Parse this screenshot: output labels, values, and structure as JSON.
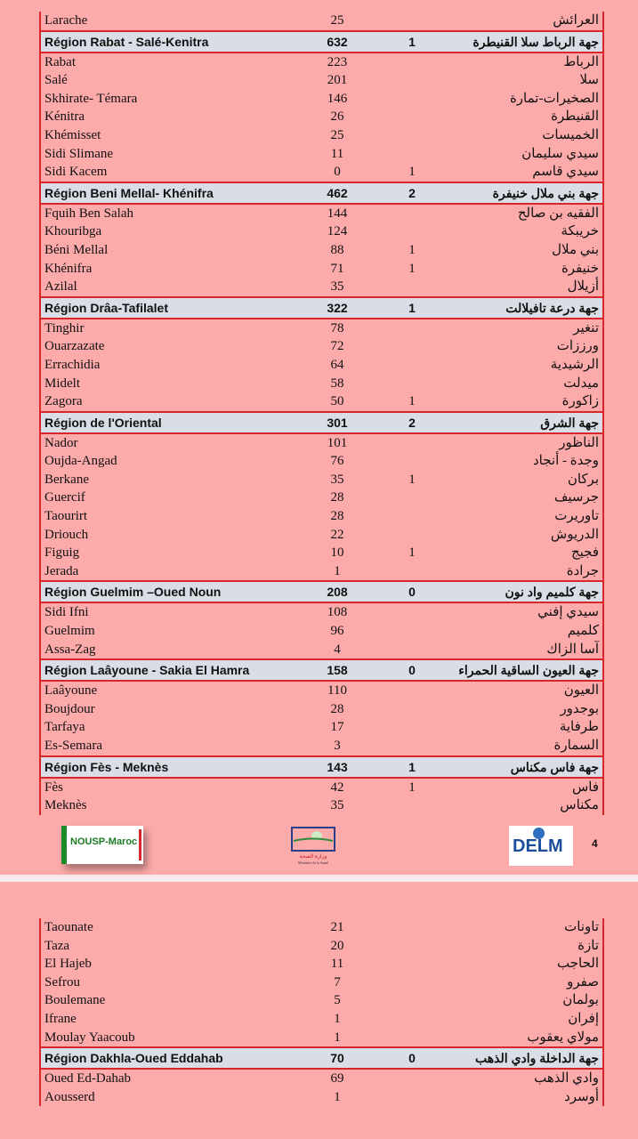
{
  "page1_rows": [
    {
      "fr": "Larache",
      "n": "25",
      "d": "",
      "ar": "العرائش"
    },
    {
      "fr": "Région Rabat - Salé-Kenitra",
      "n": "632",
      "d": "1",
      "ar": "جهة الرباط سلا القنيطرة",
      "region": true
    },
    {
      "fr": "Rabat",
      "n": "223",
      "d": "",
      "ar": "الرباط"
    },
    {
      "fr": "Salé",
      "n": "201",
      "d": "",
      "ar": "سلا"
    },
    {
      "fr": "Skhirate- Témara",
      "n": "146",
      "d": "",
      "ar": "الصخيرات-تمارة"
    },
    {
      "fr": "Kénitra",
      "n": "26",
      "d": "",
      "ar": "القنيطرة"
    },
    {
      "fr": "Khémisset",
      "n": "25",
      "d": "",
      "ar": "الخميسات"
    },
    {
      "fr": "Sidi Slimane",
      "n": "11",
      "d": "",
      "ar": "سيدي سليمان"
    },
    {
      "fr": "Sidi Kacem",
      "n": "0",
      "d": "1",
      "ar": "سيدي قاسم"
    },
    {
      "fr": "Région Beni Mellal- Khénifra",
      "n": "462",
      "d": "2",
      "ar": "جهة بني ملال خنيفرة",
      "region": true
    },
    {
      "fr": "Fquih Ben Salah",
      "n": "144",
      "d": "",
      "ar": "الفقيه بن صالح"
    },
    {
      "fr": "Khouribga",
      "n": "124",
      "d": "",
      "ar": "خريبكة"
    },
    {
      "fr": "Béni Mellal",
      "n": "88",
      "d": "1",
      "ar": "بني ملال"
    },
    {
      "fr": "Khénifra",
      "n": "71",
      "d": "1",
      "ar": "خنيفرة"
    },
    {
      "fr": "Azilal",
      "n": "35",
      "d": "",
      "ar": "أزيلال"
    },
    {
      "fr": "Région Drâa-Tafilalet",
      "n": "322",
      "d": "1",
      "ar": "جهة درعة تافيلالت",
      "region": true
    },
    {
      "fr": "Tinghir",
      "n": "78",
      "d": "",
      "ar": "تنغير"
    },
    {
      "fr": "Ouarzazate",
      "n": "72",
      "d": "",
      "ar": "ورززات"
    },
    {
      "fr": "Errachidia",
      "n": "64",
      "d": "",
      "ar": "الرشيدية"
    },
    {
      "fr": "Midelt",
      "n": "58",
      "d": "",
      "ar": "ميدلت"
    },
    {
      "fr": "Zagora",
      "n": "50",
      "d": "1",
      "ar": "زاكورة"
    },
    {
      "fr": "Région de l'Oriental",
      "n": "301",
      "d": "2",
      "ar": "جهة الشرق",
      "region": true
    },
    {
      "fr": "Nador",
      "n": "101",
      "d": "",
      "ar": "الناظور"
    },
    {
      "fr": "Oujda-Angad",
      "n": "76",
      "d": "",
      "ar": "وجدة - أنجاد"
    },
    {
      "fr": "Berkane",
      "n": "35",
      "d": "1",
      "ar": "بركان"
    },
    {
      "fr": "Guercif",
      "n": "28",
      "d": "",
      "ar": "جرسيف"
    },
    {
      "fr": "Taourirt",
      "n": "28",
      "d": "",
      "ar": "تاوريرت"
    },
    {
      "fr": "Driouch",
      "n": "22",
      "d": "",
      "ar": "الدريوش"
    },
    {
      "fr": "Figuig",
      "n": "10",
      "d": "1",
      "ar": "فجيج"
    },
    {
      "fr": "Jerada",
      "n": "1",
      "d": "",
      "ar": "جرادة"
    },
    {
      "fr": "Région Guelmim –Oued Noun",
      "n": "208",
      "d": "0",
      "ar": "جهة كلميم واد نون",
      "region": true
    },
    {
      "fr": "Sidi Ifni",
      "n": "108",
      "d": "",
      "ar": "سيدي إفني"
    },
    {
      "fr": "Guelmim",
      "n": "96",
      "d": "",
      "ar": "كلميم"
    },
    {
      "fr": "Assa-Zag",
      "n": "4",
      "d": "",
      "ar": "آسا الزاك"
    },
    {
      "fr": "Région Laâyoune - Sakia El Hamra",
      "n": "158",
      "d": "0",
      "ar": "جهة العيون الساقية الحمراء",
      "region": true
    },
    {
      "fr": "Laâyoune",
      "n": "110",
      "d": "",
      "ar": "العيون"
    },
    {
      "fr": "Boujdour",
      "n": "28",
      "d": "",
      "ar": "بوجدور"
    },
    {
      "fr": "Tarfaya",
      "n": "17",
      "d": "",
      "ar": "طرفاية"
    },
    {
      "fr": "Es-Semara",
      "n": "3",
      "d": "",
      "ar": "السمارة"
    },
    {
      "fr": "Région Fès - Meknès",
      "n": "143",
      "d": "1",
      "ar": "جهة فاس مكناس",
      "region": true
    },
    {
      "fr": "Fès",
      "n": "42",
      "d": "1",
      "ar": "فاس"
    },
    {
      "fr": "Meknès",
      "n": "35",
      "d": "",
      "ar": "مكناس"
    }
  ],
  "page2_rows": [
    {
      "fr": "Taounate",
      "n": "21",
      "d": "",
      "ar": "تاونات"
    },
    {
      "fr": "Taza",
      "n": "20",
      "d": "",
      "ar": "تازة"
    },
    {
      "fr": "El  Hajeb",
      "n": "11",
      "d": "",
      "ar": "الحاجب"
    },
    {
      "fr": "Sefrou",
      "n": "7",
      "d": "",
      "ar": "صفرو"
    },
    {
      "fr": "Boulemane",
      "n": "5",
      "d": "",
      "ar": "بولمان"
    },
    {
      "fr": "Ifrane",
      "n": "1",
      "d": "",
      "ar": "إفران"
    },
    {
      "fr": "Moulay Yaacoub",
      "n": "1",
      "d": "",
      "ar": "مولاي يعقوب"
    },
    {
      "fr": "Région Dakhla-Oued Eddahab",
      "n": "70",
      "d": "0",
      "ar": "جهة الداخلة وادي الذهب",
      "region": true
    },
    {
      "fr": "Oued Ed-Dahab",
      "n": "69",
      "d": "",
      "ar": "وادي الذهب"
    },
    {
      "fr": "Aousserd",
      "n": "1",
      "d": "",
      "ar": "أوسرد"
    }
  ],
  "footer": {
    "logo_nousp": "NOUSP-Maroc",
    "logo_ministry": "وزارة الصحة Ministère de la Santé",
    "logo_delm": "DELM",
    "page_number": "4"
  },
  "colors": {
    "background": "#fdaaab",
    "border": "#d8262a",
    "region_row": "#d9dee6"
  }
}
